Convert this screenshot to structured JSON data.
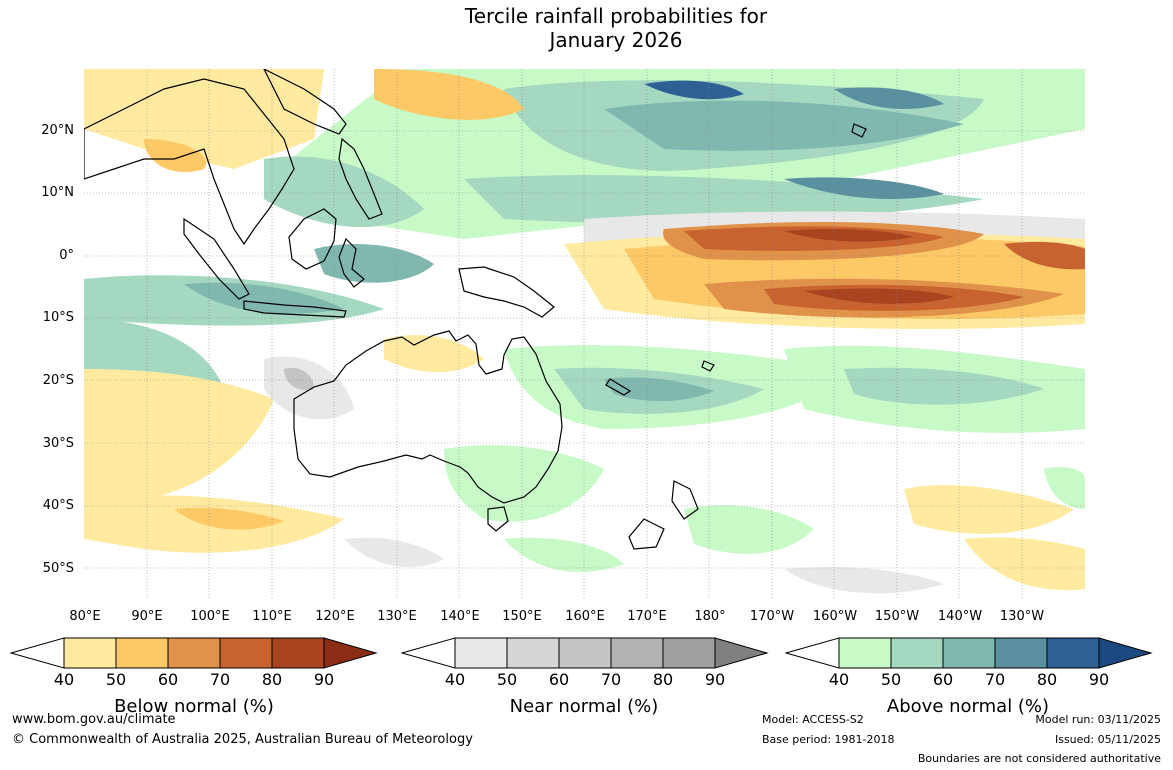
{
  "title": {
    "line1": "Tercile rainfall probabilities for",
    "line2": "January 2026"
  },
  "map": {
    "latitude_labels": [
      "20°N",
      "10°N",
      "0°",
      "10°S",
      "20°S",
      "30°S",
      "40°S",
      "50°S"
    ],
    "longitude_labels": [
      "80°E",
      "90°E",
      "100°E",
      "110°E",
      "120°E",
      "130°E",
      "140°E",
      "150°E",
      "160°E",
      "170°E",
      "180°",
      "170°W",
      "160°W",
      "150°W",
      "140°W",
      "130°W"
    ],
    "icons": [
      "coastline-icon",
      "tercile-probability-shading"
    ]
  },
  "legends": [
    {
      "title": "Below normal (%)",
      "ticks": [
        "40",
        "50",
        "60",
        "70",
        "80",
        "90"
      ],
      "colors": [
        "#ffffff",
        "#ffeaa0",
        "#fdc966",
        "#e0914a",
        "#c8632f",
        "#a8441f",
        "#8b2c14"
      ]
    },
    {
      "title": "Near normal (%)",
      "ticks": [
        "40",
        "50",
        "60",
        "70",
        "80",
        "90"
      ],
      "colors": [
        "#ffffff",
        "#e8e8e8",
        "#d6d6d6",
        "#c4c4c4",
        "#b2b2b2",
        "#a0a0a0",
        "#808080"
      ]
    },
    {
      "title": "Above normal (%)",
      "ticks": [
        "40",
        "50",
        "60",
        "70",
        "80",
        "90"
      ],
      "colors": [
        "#ffffff",
        "#c8fac8",
        "#a4d8c0",
        "#80b8b0",
        "#5a90a0",
        "#2f6094",
        "#1c4a80"
      ]
    }
  ],
  "footer": {
    "website": "www.bom.gov.au/climate",
    "copyright": "© Commonwealth of Australia 2025, Australian Bureau of Meteorology",
    "model": "Model: ACCESS-S2",
    "base_period": "Base period: 1981-2018",
    "model_run": "Model run: 03/11/2025",
    "issued": "Issued: 05/11/2025",
    "disclaimer": "Boundaries are not considered authoritative"
  }
}
